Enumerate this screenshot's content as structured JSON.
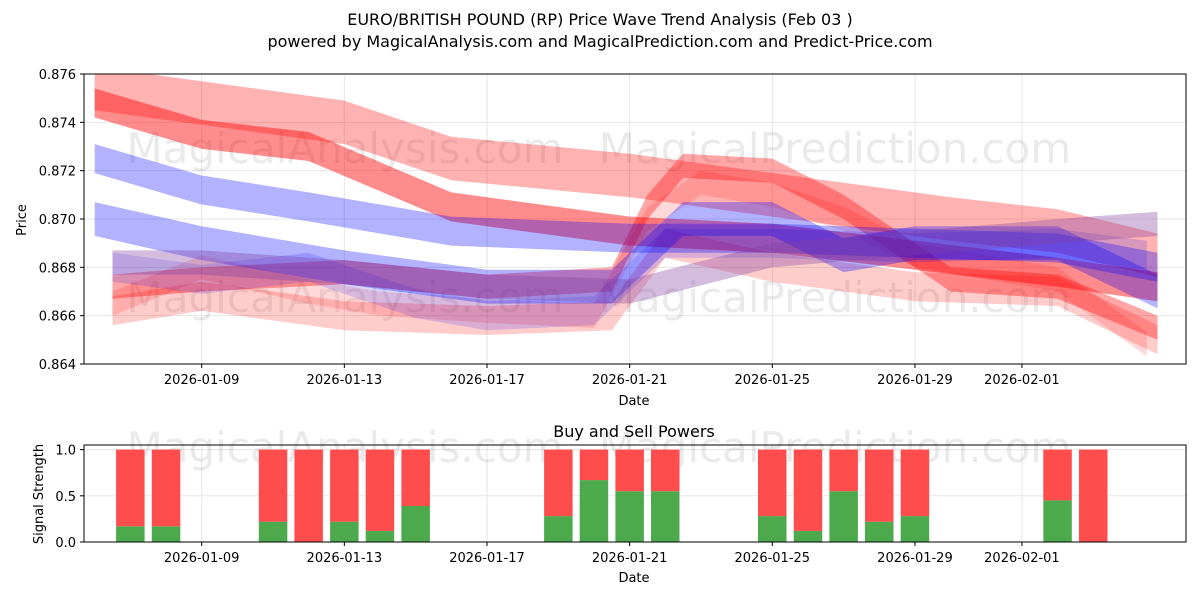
{
  "title_line1": "EURO/BRITISH POUND (RP) Price Wave Trend Analysis (Feb 03 )",
  "title_line2": "powered by MagicalAnalysis.com and MagicalPrediction.com and Predict-Price.com",
  "watermarks": [
    "MagicalAnalysis.com",
    "MagicalPrediction.com"
  ],
  "colors": {
    "red": "#ff0000",
    "blue": "#0000ff",
    "purple": "#8040a0",
    "buy": "#4caa4c",
    "sell": "#ff4c4c"
  },
  "chart_data": [
    {
      "type": "area",
      "title": "",
      "xlabel": "Date",
      "ylabel": "Price",
      "ylim": [
        0.864,
        0.876
      ],
      "xlim_days": [
        -3.3,
        27.6
      ],
      "x_ticks": [
        {
          "day": 0,
          "label": "2026-01-09"
        },
        {
          "day": 4,
          "label": "2026-01-13"
        },
        {
          "day": 8,
          "label": "2026-01-17"
        },
        {
          "day": 12,
          "label": "2026-01-21"
        },
        {
          "day": 16,
          "label": "2026-01-25"
        },
        {
          "day": 20,
          "label": "2026-01-29"
        },
        {
          "day": 23,
          "label": "2026-02-01"
        }
      ],
      "y_ticks": [
        0.864,
        0.866,
        0.868,
        0.87,
        0.872,
        0.874,
        0.876
      ],
      "y_tick_labels": [
        "0.864",
        "0.866",
        "0.868",
        "0.870",
        "0.872",
        "0.874",
        "0.876"
      ],
      "grid": true,
      "bands": [
        {
          "name": "red-upper-1",
          "color": "red",
          "opacity": 0.3,
          "width": 0.0018,
          "days": [
            -3,
            0,
            4,
            7,
            12,
            16,
            21,
            24,
            26.8
          ],
          "values": [
            0.8754,
            0.8748,
            0.874,
            0.8725,
            0.8718,
            0.871,
            0.87,
            0.8695,
            0.8685
          ]
        },
        {
          "name": "red-upper-2",
          "color": "red",
          "opacity": 0.45,
          "width": 0.0012,
          "days": [
            -3,
            0,
            3,
            7,
            12,
            16,
            20,
            24,
            26.8
          ],
          "values": [
            0.8748,
            0.8735,
            0.873,
            0.8705,
            0.8695,
            0.8692,
            0.8685,
            0.8678,
            0.8672
          ]
        },
        {
          "name": "red-mid",
          "color": "red",
          "opacity": 0.35,
          "width": 0.001,
          "days": [
            -2.5,
            0,
            4,
            8,
            11.5,
            12.5,
            13.5,
            16,
            18,
            19.5,
            21,
            24,
            26.8
          ],
          "values": [
            0.8672,
            0.8675,
            0.8678,
            0.8672,
            0.8675,
            0.8705,
            0.8722,
            0.872,
            0.8705,
            0.869,
            0.8675,
            0.8672,
            0.8655
          ]
        },
        {
          "name": "red-low",
          "color": "red",
          "opacity": 0.2,
          "width": 0.0012,
          "days": [
            -2.5,
            0,
            4,
            8,
            11.5,
            13,
            16,
            20,
            24,
            26.8
          ],
          "values": [
            0.8662,
            0.8668,
            0.866,
            0.8658,
            0.866,
            0.869,
            0.868,
            0.8672,
            0.867,
            0.865
          ]
        },
        {
          "name": "pink-wave",
          "color": "red",
          "opacity": 0.15,
          "width": 0.001,
          "days": [
            -2.5,
            0,
            3,
            5,
            8,
            11,
            12.5,
            14,
            16,
            18,
            20,
            22,
            24,
            26.5
          ],
          "values": [
            0.8665,
            0.868,
            0.867,
            0.8665,
            0.8662,
            0.866,
            0.87,
            0.8715,
            0.871,
            0.87,
            0.8685,
            0.868,
            0.8675,
            0.8648
          ]
        },
        {
          "name": "blue-upper",
          "color": "blue",
          "opacity": 0.3,
          "width": 0.0012,
          "days": [
            -3,
            0,
            3,
            7,
            12,
            16,
            20,
            24,
            26.8
          ],
          "values": [
            0.8725,
            0.8712,
            0.8705,
            0.8695,
            0.8692,
            0.8692,
            0.869,
            0.8688,
            0.868
          ]
        },
        {
          "name": "blue-main",
          "color": "blue",
          "opacity": 0.3,
          "width": 0.0014,
          "days": [
            -3,
            0,
            4,
            8,
            11.5,
            13.5,
            16,
            18,
            20,
            24,
            26.8
          ],
          "values": [
            0.87,
            0.869,
            0.868,
            0.8672,
            0.8672,
            0.87,
            0.87,
            0.8685,
            0.869,
            0.869,
            0.867
          ]
        },
        {
          "name": "blue-low",
          "color": "blue",
          "opacity": 0.15,
          "width": 0.0012,
          "days": [
            -2.5,
            0,
            3,
            6,
            8,
            11,
            13,
            16,
            20,
            24,
            26.5
          ],
          "values": [
            0.868,
            0.8675,
            0.868,
            0.8665,
            0.866,
            0.8662,
            0.869,
            0.869,
            0.8688,
            0.869,
            0.8685
          ]
        },
        {
          "name": "purple-trend",
          "color": "purple",
          "opacity": 0.35,
          "width": 0.001,
          "days": [
            -2.5,
            0,
            4,
            8,
            12,
            16,
            20,
            24,
            26.8
          ],
          "values": [
            0.8682,
            0.8682,
            0.8678,
            0.8672,
            0.867,
            0.8685,
            0.869,
            0.8695,
            0.8698
          ]
        }
      ]
    },
    {
      "type": "bar",
      "title": "Buy and Sell Powers",
      "xlabel": "Date",
      "ylabel": "Signal Strength",
      "ylim": [
        0,
        1.05
      ],
      "xlim_days": [
        -3.3,
        27.6
      ],
      "x_ticks": [
        {
          "day": 0,
          "label": "2026-01-09"
        },
        {
          "day": 4,
          "label": "2026-01-13"
        },
        {
          "day": 8,
          "label": "2026-01-17"
        },
        {
          "day": 12,
          "label": "2026-01-21"
        },
        {
          "day": 16,
          "label": "2026-01-25"
        },
        {
          "day": 20,
          "label": "2026-01-29"
        },
        {
          "day": 23,
          "label": "2026-02-01"
        }
      ],
      "y_ticks": [
        0.0,
        0.5,
        1.0
      ],
      "y_tick_labels": [
        "0.0",
        "0.5",
        "1.0"
      ],
      "grid": true,
      "days": [
        -2,
        -1,
        2,
        3,
        4,
        5,
        6,
        10,
        11,
        12,
        13,
        16,
        17,
        18,
        19,
        20,
        24,
        25
      ],
      "buy": [
        0.17,
        0.17,
        0.22,
        0.0,
        0.22,
        0.12,
        0.39,
        0.28,
        0.67,
        0.55,
        0.55,
        0.28,
        0.12,
        0.55,
        0.22,
        0.28,
        0.45,
        0.0
      ],
      "sell": [
        0.83,
        0.83,
        0.78,
        1.0,
        0.78,
        0.88,
        0.61,
        0.72,
        0.33,
        0.45,
        0.45,
        0.72,
        0.88,
        0.45,
        0.78,
        0.72,
        0.55,
        1.0
      ]
    }
  ]
}
